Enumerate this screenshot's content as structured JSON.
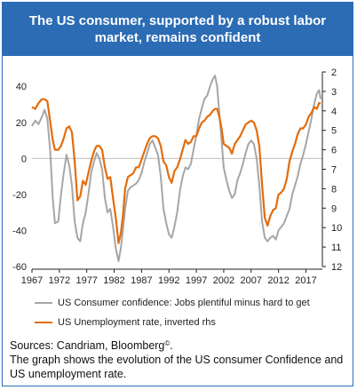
{
  "header": {
    "title": "The US consumer, supported by a robust labor market, remains confident"
  },
  "legend": {
    "confidence_label": "US Consumer confidence: Jobs plentiful minus hard to get",
    "unemployment_label": "US Unemployment rate, inverted rhs"
  },
  "footer": {
    "sources": "Sources: Candriam, Bloomberg",
    "sources_mark": "©",
    "sources_end": ".",
    "description": "The graph shows the evolution of the US consumer Confidence and US unemployment rate."
  },
  "colors": {
    "header_bg": "#2c6cb4",
    "confidence": "#a6a6a6",
    "unemployment": "#e46c0a"
  },
  "chart_data": {
    "type": "line",
    "x_tick_labels": [
      "1967",
      "1972",
      "1977",
      "1982",
      "1987",
      "1992",
      "1997",
      "2002",
      "2007",
      "2012",
      "2017"
    ],
    "xlim": [
      1967,
      2020
    ],
    "y_left": {
      "ticks": [
        40,
        20,
        0,
        -20,
        -40,
        -60
      ],
      "ylim": [
        -60,
        48
      ]
    },
    "y_right": {
      "ticks": [
        2,
        3,
        4,
        5,
        6,
        7,
        8,
        9,
        10,
        11,
        12
      ],
      "ylim": [
        2,
        12
      ],
      "inverted": true
    },
    "series": [
      {
        "name": "US Consumer confidence: Jobs plentiful minus hard to get",
        "axis": "left",
        "points": [
          [
            1967.0,
            18
          ],
          [
            1967.6,
            21
          ],
          [
            1968.2,
            19
          ],
          [
            1968.8,
            23
          ],
          [
            1969.3,
            27
          ],
          [
            1969.8,
            22
          ],
          [
            1970.3,
            5
          ],
          [
            1970.8,
            -22
          ],
          [
            1971.2,
            -36
          ],
          [
            1971.8,
            -35
          ],
          [
            1972.3,
            -20
          ],
          [
            1972.8,
            -8
          ],
          [
            1973.3,
            2
          ],
          [
            1973.8,
            -4
          ],
          [
            1974.3,
            -15
          ],
          [
            1974.8,
            -35
          ],
          [
            1975.3,
            -44
          ],
          [
            1975.8,
            -46
          ],
          [
            1976.3,
            -36
          ],
          [
            1976.8,
            -30
          ],
          [
            1977.3,
            -20
          ],
          [
            1977.8,
            -8
          ],
          [
            1978.3,
            -2
          ],
          [
            1978.8,
            3
          ],
          [
            1979.3,
            0
          ],
          [
            1979.8,
            -6
          ],
          [
            1980.3,
            -22
          ],
          [
            1980.8,
            -30
          ],
          [
            1981.3,
            -28
          ],
          [
            1981.8,
            -38
          ],
          [
            1982.3,
            -50
          ],
          [
            1982.8,
            -57
          ],
          [
            1983.2,
            -50
          ],
          [
            1983.6,
            -40
          ],
          [
            1984.0,
            -28
          ],
          [
            1984.5,
            -18
          ],
          [
            1985.0,
            -16
          ],
          [
            1985.5,
            -15
          ],
          [
            1986.0,
            -14
          ],
          [
            1986.5,
            -12
          ],
          [
            1987.0,
            -8
          ],
          [
            1987.5,
            -2
          ],
          [
            1988.0,
            3
          ],
          [
            1988.5,
            8
          ],
          [
            1989.0,
            10
          ],
          [
            1989.5,
            6
          ],
          [
            1990.0,
            2
          ],
          [
            1990.5,
            -10
          ],
          [
            1991.0,
            -28
          ],
          [
            1991.5,
            -36
          ],
          [
            1992.0,
            -42
          ],
          [
            1992.5,
            -44
          ],
          [
            1993.0,
            -38
          ],
          [
            1993.5,
            -30
          ],
          [
            1994.0,
            -18
          ],
          [
            1994.5,
            -10
          ],
          [
            1995.0,
            -5
          ],
          [
            1995.5,
            -6
          ],
          [
            1996.0,
            -3
          ],
          [
            1996.5,
            5
          ],
          [
            1997.0,
            13
          ],
          [
            1997.5,
            22
          ],
          [
            1998.0,
            28
          ],
          [
            1998.5,
            33
          ],
          [
            1999.0,
            35
          ],
          [
            1999.5,
            40
          ],
          [
            2000.0,
            44
          ],
          [
            2000.4,
            46
          ],
          [
            2000.8,
            40
          ],
          [
            2001.2,
            25
          ],
          [
            2001.6,
            10
          ],
          [
            2002.0,
            -5
          ],
          [
            2002.5,
            -12
          ],
          [
            2003.0,
            -18
          ],
          [
            2003.5,
            -22
          ],
          [
            2004.0,
            -20
          ],
          [
            2004.5,
            -12
          ],
          [
            2005.0,
            -8
          ],
          [
            2005.5,
            -3
          ],
          [
            2006.0,
            3
          ],
          [
            2006.5,
            8
          ],
          [
            2007.0,
            10
          ],
          [
            2007.5,
            8
          ],
          [
            2008.0,
            0
          ],
          [
            2008.5,
            -15
          ],
          [
            2009.0,
            -35
          ],
          [
            2009.5,
            -44
          ],
          [
            2010.0,
            -46
          ],
          [
            2010.5,
            -44
          ],
          [
            2011.0,
            -43
          ],
          [
            2011.5,
            -45
          ],
          [
            2012.0,
            -40
          ],
          [
            2012.5,
            -38
          ],
          [
            2013.0,
            -36
          ],
          [
            2013.5,
            -32
          ],
          [
            2014.0,
            -28
          ],
          [
            2014.5,
            -20
          ],
          [
            2015.0,
            -15
          ],
          [
            2015.5,
            -10
          ],
          [
            2016.0,
            -3
          ],
          [
            2016.5,
            2
          ],
          [
            2017.0,
            8
          ],
          [
            2017.5,
            15
          ],
          [
            2018.0,
            22
          ],
          [
            2018.5,
            30
          ],
          [
            2019.0,
            36
          ],
          [
            2019.4,
            38
          ],
          [
            2019.7,
            33
          ]
        ]
      },
      {
        "name": "US Unemployment rate, inverted rhs",
        "axis": "right",
        "points": [
          [
            1967.0,
            3.8
          ],
          [
            1967.6,
            3.9
          ],
          [
            1968.2,
            3.6
          ],
          [
            1968.8,
            3.4
          ],
          [
            1969.3,
            3.4
          ],
          [
            1969.8,
            3.5
          ],
          [
            1970.3,
            4.5
          ],
          [
            1970.8,
            5.5
          ],
          [
            1971.2,
            6.0
          ],
          [
            1971.8,
            6.0
          ],
          [
            1972.3,
            5.8
          ],
          [
            1972.8,
            5.4
          ],
          [
            1973.3,
            4.9
          ],
          [
            1973.8,
            4.8
          ],
          [
            1974.3,
            5.1
          ],
          [
            1974.8,
            6.6
          ],
          [
            1975.3,
            8.6
          ],
          [
            1975.8,
            8.4
          ],
          [
            1976.3,
            7.6
          ],
          [
            1976.8,
            7.8
          ],
          [
            1977.3,
            7.2
          ],
          [
            1977.8,
            6.6
          ],
          [
            1978.3,
            6.1
          ],
          [
            1978.8,
            5.8
          ],
          [
            1979.3,
            5.8
          ],
          [
            1979.8,
            6.0
          ],
          [
            1980.3,
            6.9
          ],
          [
            1980.8,
            7.5
          ],
          [
            1981.3,
            7.4
          ],
          [
            1981.8,
            8.5
          ],
          [
            1982.3,
            9.5
          ],
          [
            1982.8,
            10.8
          ],
          [
            1983.2,
            10.3
          ],
          [
            1983.6,
            9.4
          ],
          [
            1984.0,
            8.0
          ],
          [
            1984.5,
            7.4
          ],
          [
            1985.0,
            7.3
          ],
          [
            1985.5,
            7.2
          ],
          [
            1986.0,
            6.9
          ],
          [
            1986.5,
            6.9
          ],
          [
            1987.0,
            6.5
          ],
          [
            1987.5,
            6.1
          ],
          [
            1988.0,
            5.7
          ],
          [
            1988.5,
            5.4
          ],
          [
            1989.0,
            5.3
          ],
          [
            1989.5,
            5.3
          ],
          [
            1990.0,
            5.4
          ],
          [
            1990.5,
            5.8
          ],
          [
            1991.0,
            6.6
          ],
          [
            1991.5,
            6.8
          ],
          [
            1992.0,
            7.4
          ],
          [
            1992.5,
            7.7
          ],
          [
            1993.0,
            7.1
          ],
          [
            1993.5,
            6.9
          ],
          [
            1994.0,
            6.5
          ],
          [
            1994.5,
            6.0
          ],
          [
            1995.0,
            5.5
          ],
          [
            1995.5,
            5.7
          ],
          [
            1996.0,
            5.6
          ],
          [
            1996.5,
            5.3
          ],
          [
            1997.0,
            5.3
          ],
          [
            1997.5,
            4.9
          ],
          [
            1998.0,
            4.6
          ],
          [
            1998.5,
            4.5
          ],
          [
            1999.0,
            4.3
          ],
          [
            1999.5,
            4.2
          ],
          [
            2000.0,
            4.0
          ],
          [
            2000.4,
            3.9
          ],
          [
            2000.8,
            3.9
          ],
          [
            2001.2,
            4.3
          ],
          [
            2001.6,
            4.9
          ],
          [
            2002.0,
            5.7
          ],
          [
            2002.5,
            5.8
          ],
          [
            2003.0,
            5.9
          ],
          [
            2003.5,
            6.2
          ],
          [
            2004.0,
            5.7
          ],
          [
            2004.5,
            5.5
          ],
          [
            2005.0,
            5.3
          ],
          [
            2005.5,
            5.0
          ],
          [
            2006.0,
            4.7
          ],
          [
            2006.5,
            4.6
          ],
          [
            2007.0,
            4.5
          ],
          [
            2007.5,
            4.6
          ],
          [
            2008.0,
            5.0
          ],
          [
            2008.5,
            5.8
          ],
          [
            2009.0,
            7.8
          ],
          [
            2009.5,
            9.5
          ],
          [
            2010.0,
            9.9
          ],
          [
            2010.5,
            9.4
          ],
          [
            2011.0,
            9.1
          ],
          [
            2011.5,
            9.0
          ],
          [
            2012.0,
            8.3
          ],
          [
            2012.5,
            8.2
          ],
          [
            2013.0,
            8.0
          ],
          [
            2013.5,
            7.5
          ],
          [
            2014.0,
            6.6
          ],
          [
            2014.5,
            6.1
          ],
          [
            2015.0,
            5.7
          ],
          [
            2015.5,
            5.2
          ],
          [
            2016.0,
            4.9
          ],
          [
            2016.5,
            4.9
          ],
          [
            2017.0,
            4.7
          ],
          [
            2017.5,
            4.3
          ],
          [
            2018.0,
            4.1
          ],
          [
            2018.5,
            3.8
          ],
          [
            2019.0,
            3.9
          ],
          [
            2019.4,
            3.6
          ],
          [
            2019.7,
            3.6
          ]
        ]
      }
    ]
  }
}
